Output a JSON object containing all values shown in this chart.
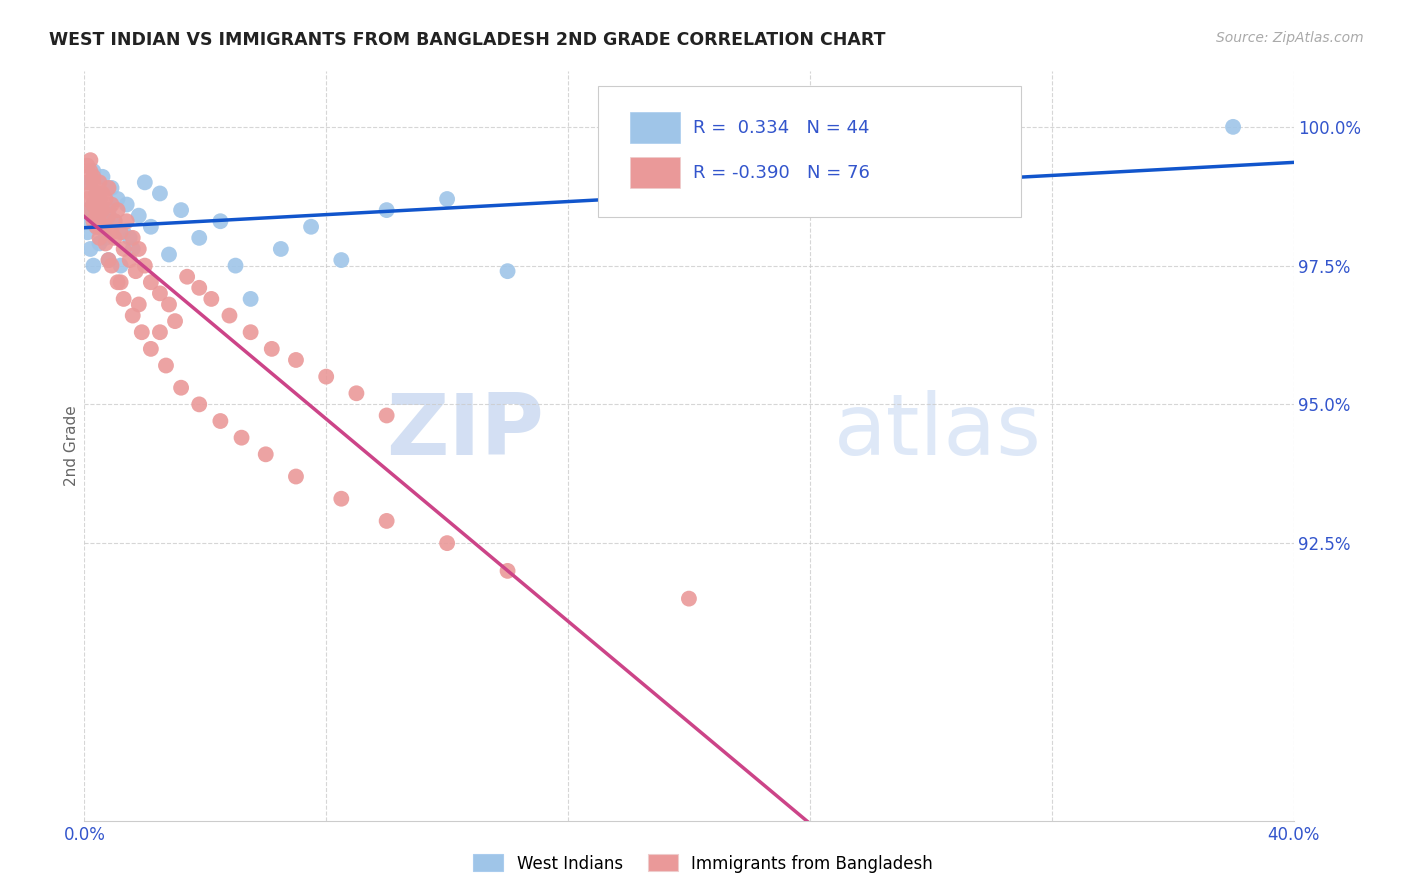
{
  "title": "WEST INDIAN VS IMMIGRANTS FROM BANGLADESH 2ND GRADE CORRELATION CHART",
  "source": "Source: ZipAtlas.com",
  "ylabel": "2nd Grade",
  "x_min": 0.0,
  "x_max": 0.4,
  "y_min": 87.5,
  "y_max": 101.0,
  "x_ticks": [
    0.0,
    0.08,
    0.16,
    0.24,
    0.32,
    0.4
  ],
  "x_tick_labels": [
    "0.0%",
    "",
    "",
    "",
    "",
    "40.0%"
  ],
  "y_ticks": [
    92.5,
    95.0,
    97.5,
    100.0
  ],
  "blue_color": "#9fc5e8",
  "pink_color": "#ea9999",
  "blue_line_color": "#1155cc",
  "pink_line_color": "#cc4488",
  "dash_color": "#ccaaaa",
  "r_blue": 0.334,
  "n_blue": 44,
  "r_pink": -0.39,
  "n_pink": 76,
  "watermark_zip": "ZIP",
  "watermark_atlas": "atlas",
  "legend_label_blue": "West Indians",
  "legend_label_pink": "Immigrants from Bangladesh",
  "blue_points_x": [
    0.001,
    0.001,
    0.002,
    0.002,
    0.002,
    0.003,
    0.003,
    0.003,
    0.004,
    0.004,
    0.005,
    0.005,
    0.006,
    0.006,
    0.007,
    0.008,
    0.008,
    0.009,
    0.01,
    0.011,
    0.012,
    0.013,
    0.014,
    0.015,
    0.016,
    0.018,
    0.02,
    0.022,
    0.025,
    0.028,
    0.032,
    0.038,
    0.045,
    0.05,
    0.055,
    0.065,
    0.075,
    0.085,
    0.1,
    0.12,
    0.14,
    0.2,
    0.28,
    0.38
  ],
  "blue_points_y": [
    98.1,
    98.5,
    97.8,
    98.3,
    99.0,
    98.6,
    97.5,
    99.2,
    98.2,
    98.8,
    97.9,
    98.7,
    98.4,
    99.1,
    98.0,
    98.5,
    97.6,
    98.9,
    98.3,
    98.7,
    97.5,
    98.1,
    98.6,
    98.0,
    97.8,
    98.4,
    99.0,
    98.2,
    98.8,
    97.7,
    98.5,
    98.0,
    98.3,
    97.5,
    96.9,
    97.8,
    98.2,
    97.6,
    98.5,
    98.7,
    97.4,
    98.9,
    99.3,
    100.0
  ],
  "pink_points_x": [
    0.001,
    0.001,
    0.001,
    0.002,
    0.002,
    0.002,
    0.002,
    0.003,
    0.003,
    0.003,
    0.003,
    0.004,
    0.004,
    0.004,
    0.005,
    0.005,
    0.005,
    0.006,
    0.006,
    0.007,
    0.007,
    0.008,
    0.008,
    0.009,
    0.009,
    0.01,
    0.01,
    0.011,
    0.012,
    0.013,
    0.014,
    0.015,
    0.016,
    0.017,
    0.018,
    0.02,
    0.022,
    0.025,
    0.028,
    0.03,
    0.034,
    0.038,
    0.042,
    0.048,
    0.055,
    0.062,
    0.07,
    0.08,
    0.09,
    0.1,
    0.003,
    0.005,
    0.007,
    0.009,
    0.011,
    0.013,
    0.016,
    0.019,
    0.022,
    0.027,
    0.032,
    0.038,
    0.045,
    0.052,
    0.06,
    0.07,
    0.085,
    0.1,
    0.12,
    0.14,
    0.005,
    0.008,
    0.012,
    0.018,
    0.025,
    0.2
  ],
  "pink_points_y": [
    99.0,
    99.3,
    98.7,
    99.2,
    98.8,
    98.5,
    99.4,
    98.3,
    99.0,
    98.6,
    99.1,
    98.4,
    98.8,
    98.2,
    98.6,
    99.0,
    98.3,
    98.5,
    98.8,
    98.2,
    98.7,
    98.4,
    98.9,
    98.1,
    98.6,
    98.3,
    98.0,
    98.5,
    98.1,
    97.8,
    98.3,
    97.6,
    98.0,
    97.4,
    97.8,
    97.5,
    97.2,
    97.0,
    96.8,
    96.5,
    97.3,
    97.1,
    96.9,
    96.6,
    96.3,
    96.0,
    95.8,
    95.5,
    95.2,
    94.8,
    98.6,
    98.2,
    97.9,
    97.5,
    97.2,
    96.9,
    96.6,
    96.3,
    96.0,
    95.7,
    95.3,
    95.0,
    94.7,
    94.4,
    94.1,
    93.7,
    93.3,
    92.9,
    92.5,
    92.0,
    98.0,
    97.6,
    97.2,
    96.8,
    96.3,
    91.5
  ]
}
